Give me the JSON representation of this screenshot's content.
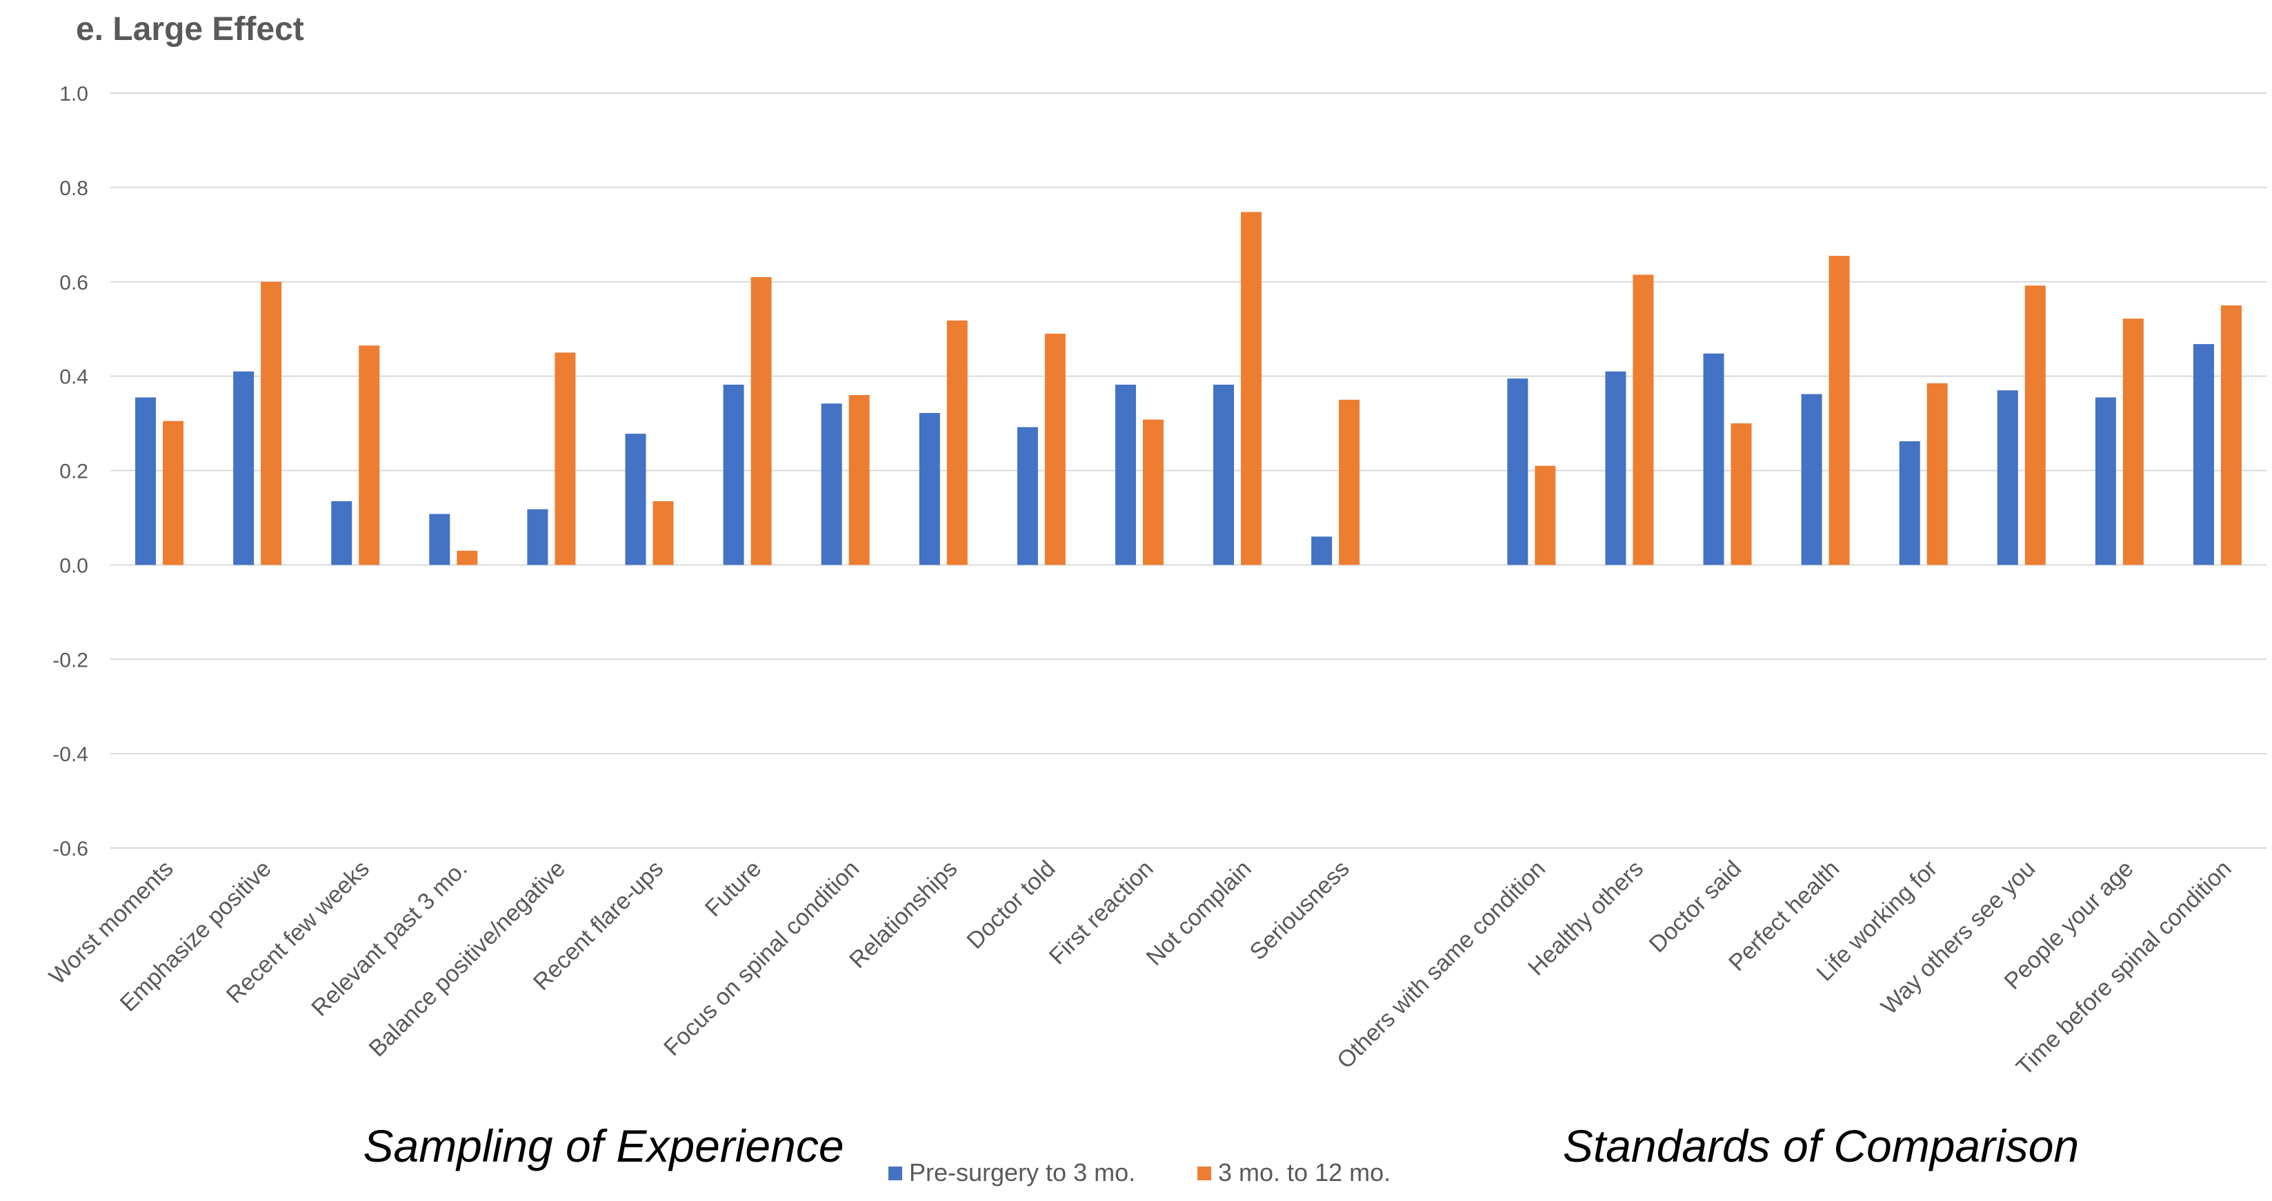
{
  "chart_data": {
    "type": "bar",
    "title": "e. Large Effect",
    "ylim": [
      -0.6,
      1.0
    ],
    "yticks": [
      "1.0",
      "0.8",
      "0.6",
      "0.4",
      "0.2",
      "0.0",
      "-0.2",
      "-0.4",
      "-0.6"
    ],
    "grid": true,
    "categories": [
      "Worst moments",
      "Emphasize positive",
      "Recent few weeks",
      "Relevant past 3 mo.",
      "Balance positive/negative",
      "Recent flare-ups",
      "Future",
      "Focus on spinal condition",
      "Relationships",
      "Doctor told",
      "First reaction",
      "Not complain",
      "Seriousness",
      "",
      "Others with same condition",
      "Healthy others",
      "Doctor said",
      "Perfect health",
      "Life working for",
      "Way others see you",
      "People your age",
      "Time before spinal condition"
    ],
    "series": [
      {
        "name": "Pre-surgery to 3 mo.",
        "color": "#4472C4",
        "values": [
          0.355,
          0.41,
          0.135,
          0.108,
          0.118,
          0.278,
          0.382,
          0.342,
          0.322,
          0.292,
          0.382,
          0.382,
          0.06,
          null,
          0.395,
          0.41,
          0.448,
          0.362,
          0.262,
          0.37,
          0.355,
          0.468
        ]
      },
      {
        "name": "3 mo. to 12 mo.",
        "color": "#ED7D31",
        "values": [
          0.305,
          0.6,
          0.465,
          0.03,
          0.45,
          0.135,
          0.61,
          0.36,
          0.518,
          0.49,
          0.308,
          0.748,
          0.35,
          null,
          0.21,
          0.615,
          0.3,
          0.655,
          0.385,
          0.592,
          0.522,
          0.55
        ]
      }
    ],
    "groups": [
      {
        "label": "Sampling of Experience",
        "span": [
          0,
          12
        ]
      },
      {
        "label": "Standards of Comparison",
        "span": [
          14,
          21
        ]
      }
    ],
    "legend_position": "bottom-center"
  }
}
